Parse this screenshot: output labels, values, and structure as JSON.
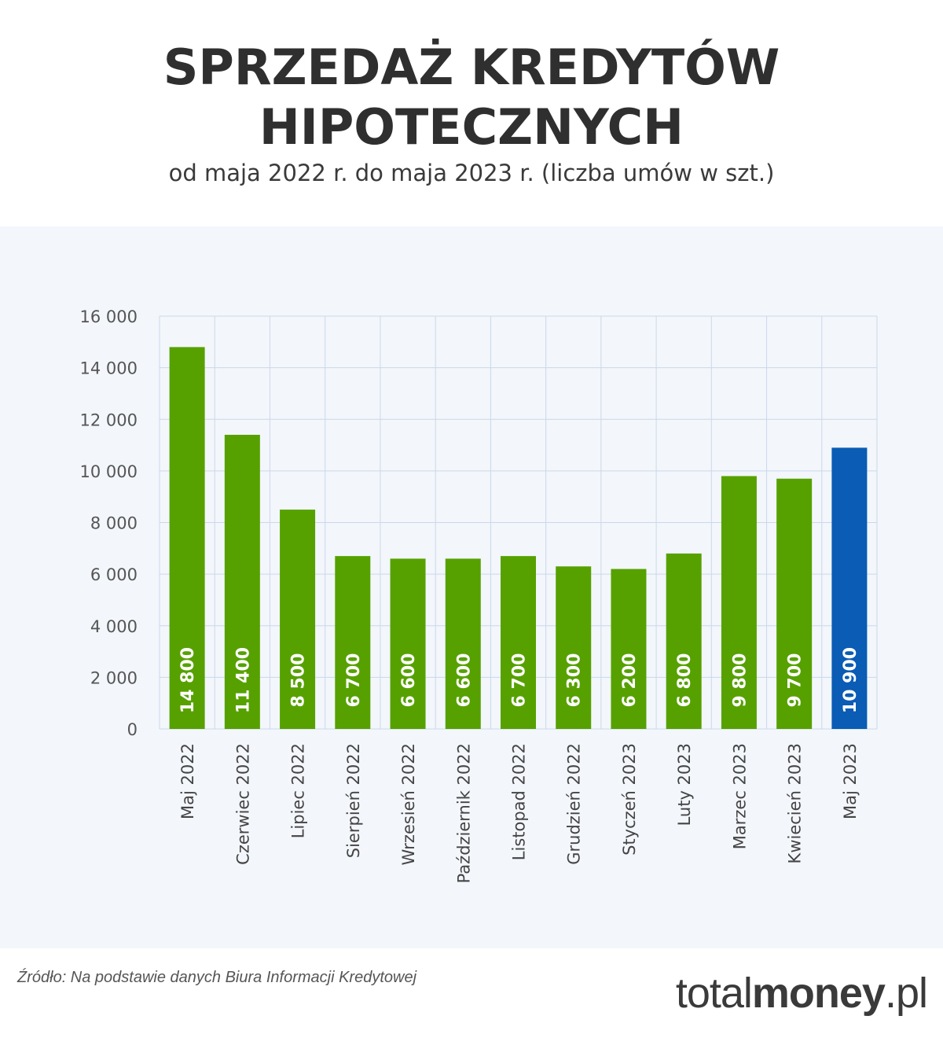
{
  "header": {
    "title_line1": "SPRZEDAŻ KREDYTÓW",
    "title_line2": "HIPOTECZNYCH",
    "subtitle": "od maja 2022 r. do maja 2023 r. (liczba umów w szt.)"
  },
  "footer": {
    "source": "Źródło: Na podstawie danych Biura Informacji Kredytowej",
    "logo_light_1": "total",
    "logo_bold": "money",
    "logo_light_2": ".pl"
  },
  "colors": {
    "bar": "#56a100",
    "highlight": "#0a5cb4",
    "grid": "#cad9ea",
    "panel": "#f3f6fb"
  },
  "chart_data": {
    "type": "bar",
    "categories": [
      "Maj 2022",
      "Czerwiec 2022",
      "Lipiec 2022",
      "Sierpień 2022",
      "Wrzesień 2022",
      "Październik 2022",
      "Listopad 2022",
      "Grudzień 2022",
      "Styczeń 2023",
      "Luty 2023",
      "Marzec 2023",
      "Kwiecień 2023",
      "Maj 2023"
    ],
    "values": [
      14800,
      11400,
      8500,
      6700,
      6600,
      6600,
      6700,
      6300,
      6200,
      6800,
      9800,
      9700,
      10900
    ],
    "value_labels": [
      "14 800",
      "11 400",
      "8 500",
      "6 700",
      "6 600",
      "6 600",
      "6 700",
      "6 300",
      "6 200",
      "6 800",
      "9 800",
      "9 700",
      "10 900"
    ],
    "highlight_index": 12,
    "yticks": [
      0,
      2000,
      4000,
      6000,
      8000,
      10000,
      12000,
      14000,
      16000
    ],
    "ytick_labels": [
      "0",
      "2 000",
      "4 000",
      "6 000",
      "8 000",
      "10 000",
      "12 000",
      "14 000",
      "16 000"
    ],
    "ylim": [
      0,
      16000
    ],
    "grid": true
  }
}
